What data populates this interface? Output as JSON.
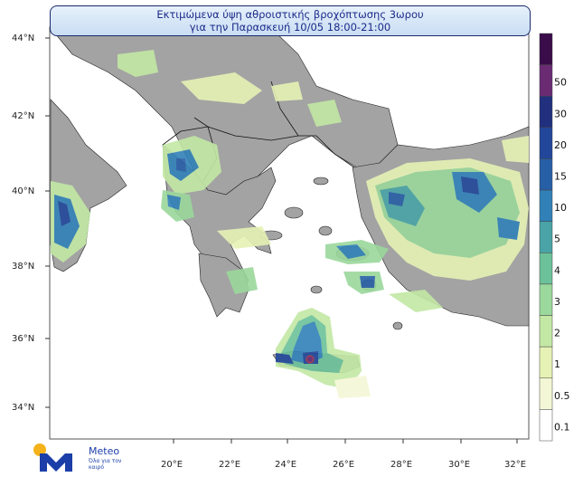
{
  "title": {
    "line1": "Εκτιμώμενα ύψη αθροιστικής βροχόπτωσης 3ωρου",
    "line2": "για την Παρασκευή 10/05 18:00-21:00"
  },
  "latitude_labels": [
    "44°N",
    "42°N",
    "40°N",
    "38°N",
    "36°N",
    "34°N"
  ],
  "longitude_labels": [
    "20°E",
    "22°E",
    "24°E",
    "26°E",
    "28°E",
    "30°E",
    "32°E"
  ],
  "legend": {
    "levels": [
      {
        "label": "0.1",
        "color": "#ffffff"
      },
      {
        "label": "0.5",
        "color": "#f4f7d6"
      },
      {
        "label": "1",
        "color": "#e6f2b5"
      },
      {
        "label": "2",
        "color": "#c3e8a5"
      },
      {
        "label": "3",
        "color": "#9bd89c"
      },
      {
        "label": "4",
        "color": "#6cc19a"
      },
      {
        "label": "5",
        "color": "#4aa3a6"
      },
      {
        "label": "10",
        "color": "#3181b8"
      },
      {
        "label": "15",
        "color": "#275fa6"
      },
      {
        "label": "20",
        "color": "#22469a"
      },
      {
        "label": "30",
        "color": "#21307e"
      },
      {
        "label": "50",
        "color": "#6a2b73"
      },
      {
        "label": "",
        "color": "#3a0c4a"
      }
    ]
  },
  "map": {
    "land_color": "#a3a3a3",
    "sea_color": "#ffffff",
    "precip_areas_note_colors": [
      "#e6f2b5",
      "#c3e8a5",
      "#6cc19a",
      "#3181b8",
      "#22469a"
    ]
  },
  "logo": {
    "name": "Meteo",
    "tagline": "Όλα για τον καιρό"
  }
}
